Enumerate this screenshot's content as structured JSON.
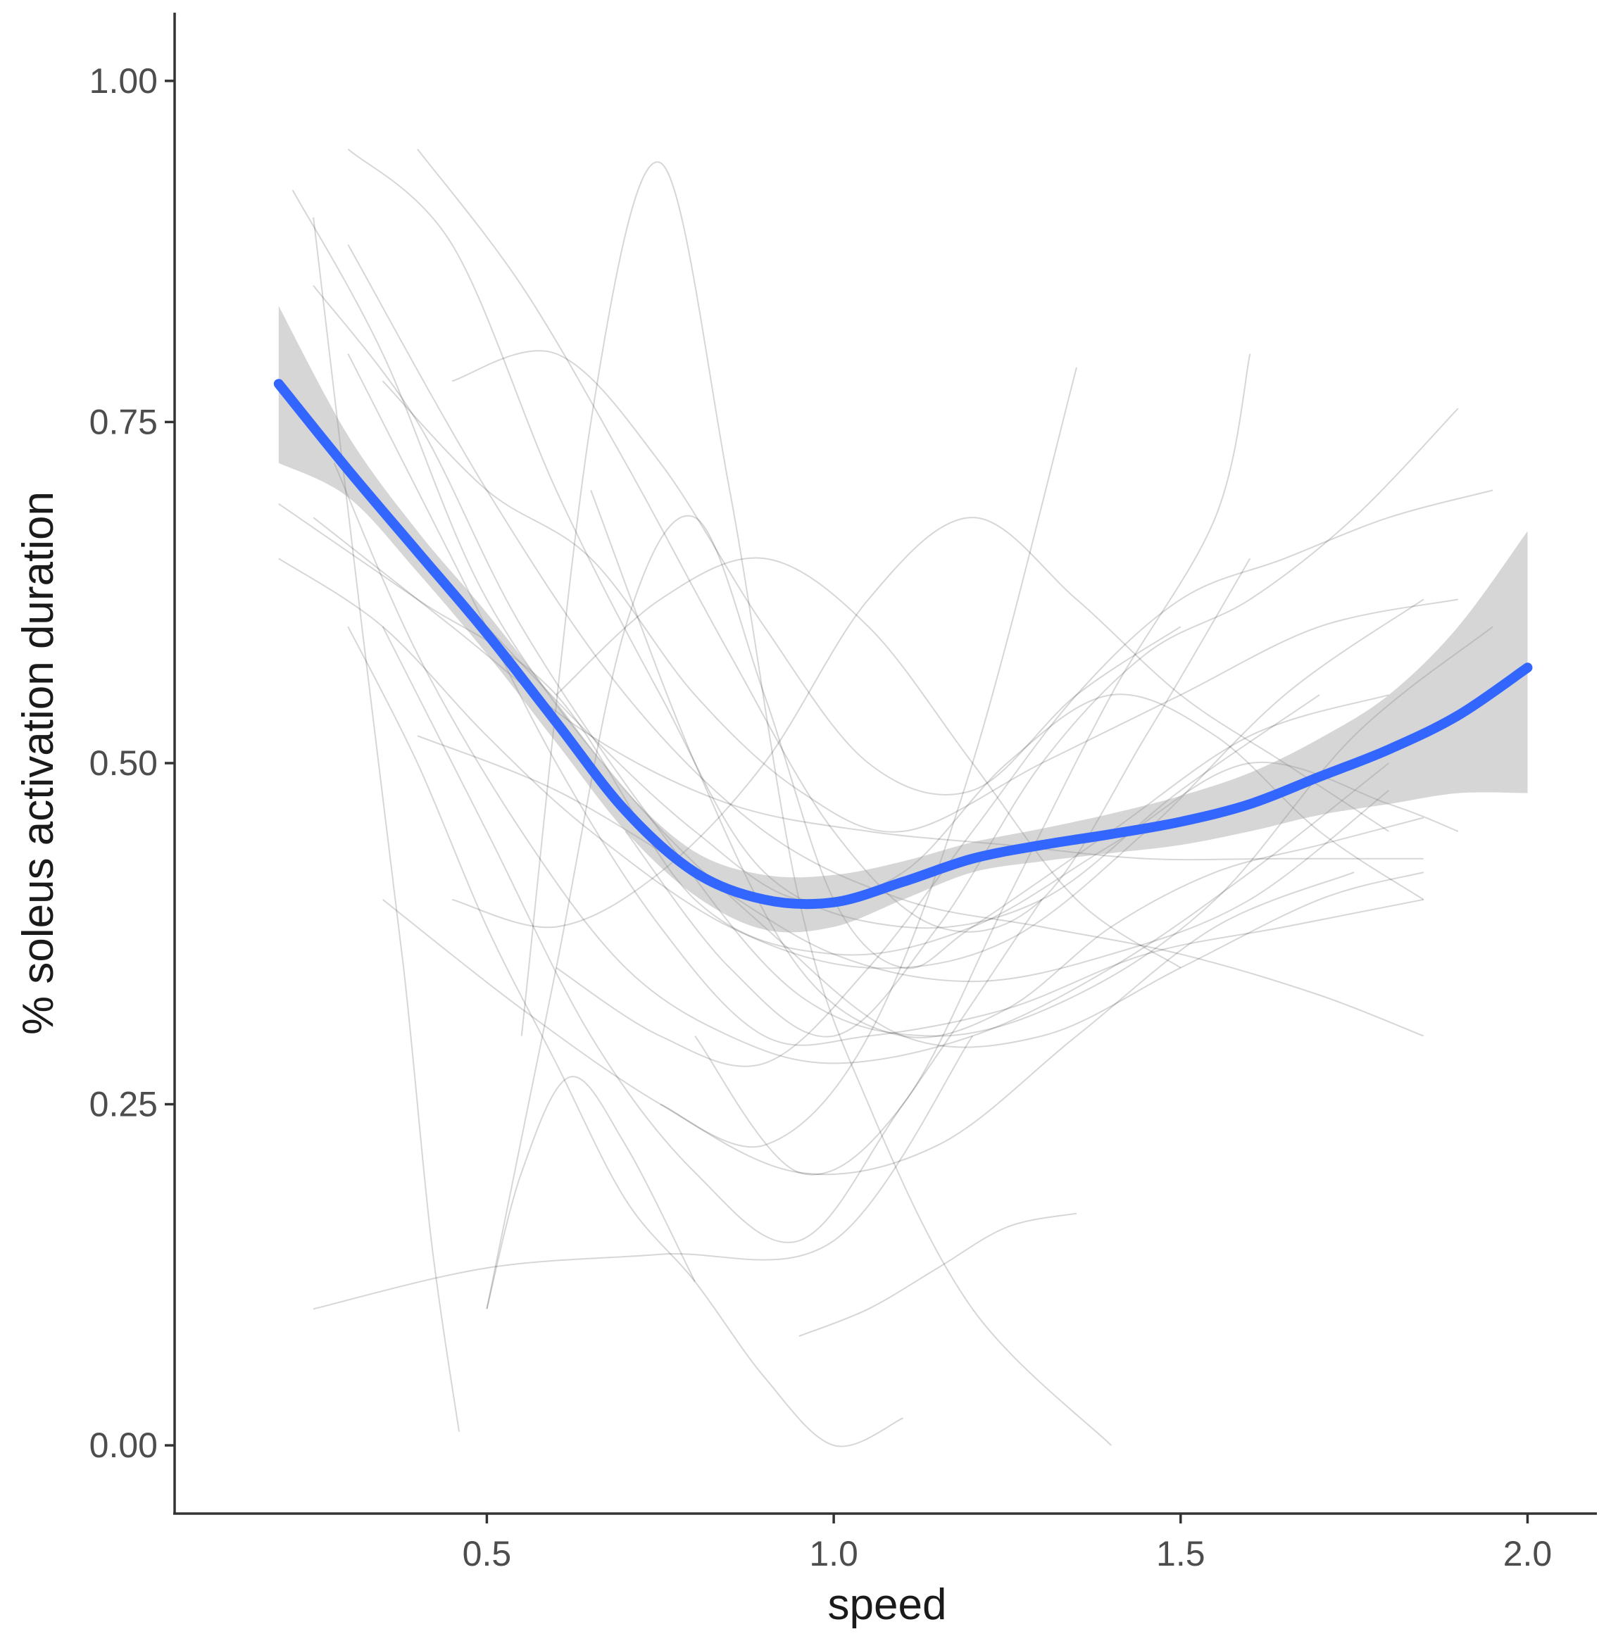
{
  "chart_data": {
    "type": "line",
    "xlabel": "speed",
    "ylabel": "% soleus activation duration",
    "xlim": [
      0.05,
      2.1
    ],
    "ylim": [
      -0.05,
      1.05
    ],
    "x_ticks": [
      0.5,
      1.0,
      1.5,
      2.0
    ],
    "x_tick_labels": [
      "0.5",
      "1.0",
      "1.5",
      "2.0"
    ],
    "y_ticks": [
      0.0,
      0.25,
      0.5,
      0.75,
      1.0
    ],
    "y_tick_labels": [
      "0.00",
      "0.25",
      "0.50",
      "0.75",
      "1.00"
    ],
    "grid": false,
    "legend": "none",
    "colors": {
      "smooth": "#3366ff",
      "ribbon": "#999999",
      "individual": "#000000"
    },
    "smooth": {
      "x": [
        0.2,
        0.3,
        0.4,
        0.5,
        0.6,
        0.7,
        0.8,
        0.9,
        1.0,
        1.1,
        1.2,
        1.3,
        1.4,
        1.5,
        1.6,
        1.7,
        1.8,
        1.9,
        2.0
      ],
      "y": [
        0.778,
        0.715,
        0.655,
        0.595,
        0.53,
        0.465,
        0.42,
        0.4,
        0.398,
        0.413,
        0.43,
        0.44,
        0.448,
        0.457,
        0.47,
        0.49,
        0.51,
        0.535,
        0.57
      ],
      "lower": [
        0.72,
        0.695,
        0.64,
        0.58,
        0.515,
        0.45,
        0.403,
        0.378,
        0.38,
        0.4,
        0.42,
        0.428,
        0.434,
        0.44,
        0.45,
        0.462,
        0.47,
        0.478,
        0.478
      ],
      "upper": [
        0.835,
        0.74,
        0.67,
        0.61,
        0.545,
        0.48,
        0.435,
        0.418,
        0.418,
        0.428,
        0.442,
        0.452,
        0.463,
        0.476,
        0.493,
        0.518,
        0.55,
        0.6,
        0.67
      ]
    },
    "individual_curves": [
      {
        "x": [
          0.2,
          0.4,
          0.6,
          0.8,
          1.0,
          1.2,
          1.4,
          1.6,
          1.8,
          1.9
        ],
        "y": [
          0.69,
          0.62,
          0.55,
          0.4,
          0.36,
          0.38,
          0.44,
          0.5,
          0.47,
          0.45
        ]
      },
      {
        "x": [
          0.22,
          0.35,
          0.5,
          0.7,
          0.9,
          1.1,
          1.3,
          1.5,
          1.7,
          1.85
        ],
        "y": [
          0.92,
          0.8,
          0.62,
          0.48,
          0.38,
          0.3,
          0.3,
          0.35,
          0.4,
          0.42
        ]
      },
      {
        "x": [
          0.25,
          0.4,
          0.55,
          0.75,
          0.95,
          1.15,
          1.35,
          1.55,
          1.75,
          1.95
        ],
        "y": [
          0.85,
          0.75,
          0.6,
          0.45,
          0.33,
          0.3,
          0.33,
          0.4,
          0.52,
          0.6
        ]
      },
      {
        "x": [
          0.2,
          0.35,
          0.5,
          0.65,
          0.85,
          1.05,
          1.25,
          1.45,
          1.65,
          1.85
        ],
        "y": [
          0.65,
          0.6,
          0.52,
          0.45,
          0.38,
          0.35,
          0.37,
          0.45,
          0.55,
          0.62
        ]
      },
      {
        "x": [
          0.3,
          0.45,
          0.6,
          0.75,
          0.9,
          1.1,
          1.3,
          1.5,
          1.7
        ],
        "y": [
          0.95,
          0.88,
          0.7,
          0.55,
          0.42,
          0.38,
          0.4,
          0.48,
          0.55
        ]
      },
      {
        "x": [
          0.55,
          0.65,
          0.75,
          0.85,
          0.95,
          1.05,
          1.2,
          1.4
        ],
        "y": [
          0.3,
          0.75,
          0.94,
          0.7,
          0.4,
          0.25,
          0.1,
          0.0
        ]
      },
      {
        "x": [
          0.25,
          0.5,
          0.75,
          1.0,
          1.2
        ],
        "y": [
          0.1,
          0.13,
          0.14,
          0.15,
          0.3
        ]
      },
      {
        "x": [
          0.25,
          0.32,
          0.38,
          0.42,
          0.46
        ],
        "y": [
          0.9,
          0.6,
          0.35,
          0.15,
          0.01
        ]
      },
      {
        "x": [
          0.28,
          0.4,
          0.55,
          0.7,
          0.85,
          1.0,
          1.2,
          1.4,
          1.6,
          1.8
        ],
        "y": [
          0.72,
          0.58,
          0.45,
          0.35,
          0.3,
          0.28,
          0.3,
          0.35,
          0.42,
          0.5
        ]
      },
      {
        "x": [
          0.3,
          0.45,
          0.6,
          0.75,
          0.9,
          1.05,
          1.25,
          1.45,
          1.65,
          1.85
        ],
        "y": [
          0.8,
          0.65,
          0.5,
          0.38,
          0.3,
          0.3,
          0.32,
          0.36,
          0.38,
          0.4
        ]
      },
      {
        "x": [
          0.35,
          0.5,
          0.65,
          0.8,
          0.95,
          1.1,
          1.3,
          1.5,
          1.7,
          1.9
        ],
        "y": [
          0.78,
          0.7,
          0.65,
          0.55,
          0.48,
          0.45,
          0.5,
          0.55,
          0.6,
          0.62
        ]
      },
      {
        "x": [
          0.5,
          0.6,
          0.7,
          0.8,
          0.9,
          1.0,
          1.1,
          1.2,
          1.4,
          1.6,
          1.8
        ],
        "y": [
          0.1,
          0.35,
          0.6,
          0.68,
          0.55,
          0.4,
          0.35,
          0.38,
          0.45,
          0.52,
          0.55
        ]
      },
      {
        "x": [
          0.5,
          0.55,
          0.62,
          0.7,
          0.8
        ],
        "y": [
          0.1,
          0.2,
          0.27,
          0.22,
          0.12
        ]
      },
      {
        "x": [
          0.3,
          0.4,
          0.5,
          0.6,
          0.7,
          0.8,
          0.9,
          1.0,
          1.1
        ],
        "y": [
          0.6,
          0.5,
          0.38,
          0.28,
          0.18,
          0.12,
          0.05,
          0.0,
          0.02
        ]
      },
      {
        "x": [
          0.35,
          0.5,
          0.65,
          0.8,
          0.95,
          1.1,
          1.3
        ],
        "y": [
          0.6,
          0.45,
          0.3,
          0.2,
          0.15,
          0.25,
          0.4
        ]
      },
      {
        "x": [
          0.4,
          0.55,
          0.7,
          0.85,
          1.0,
          1.15,
          1.3,
          1.45,
          1.6
        ],
        "y": [
          0.95,
          0.85,
          0.72,
          0.58,
          0.45,
          0.38,
          0.4,
          0.52,
          0.65
        ]
      },
      {
        "x": [
          0.45,
          0.6,
          0.75,
          0.9,
          1.05,
          1.2,
          1.35,
          1.5,
          1.65,
          1.8
        ],
        "y": [
          0.4,
          0.38,
          0.42,
          0.5,
          0.62,
          0.68,
          0.62,
          0.55,
          0.5,
          0.45
        ]
      },
      {
        "x": [
          0.6,
          0.75,
          0.9,
          1.05,
          1.2,
          1.35,
          1.5,
          1.65,
          1.8,
          1.95
        ],
        "y": [
          0.35,
          0.3,
          0.28,
          0.35,
          0.45,
          0.55,
          0.62,
          0.65,
          0.68,
          0.7
        ]
      },
      {
        "x": [
          0.7,
          0.85,
          1.0,
          1.15,
          1.3,
          1.45,
          1.6,
          1.75,
          1.9
        ],
        "y": [
          0.45,
          0.35,
          0.3,
          0.38,
          0.5,
          0.58,
          0.62,
          0.68,
          0.76
        ]
      },
      {
        "x": [
          0.75,
          0.9,
          1.05,
          1.2,
          1.35
        ],
        "y": [
          0.25,
          0.22,
          0.3,
          0.5,
          0.79
        ]
      },
      {
        "x": [
          0.8,
          0.95,
          1.1,
          1.25,
          1.4,
          1.55,
          1.6
        ],
        "y": [
          0.3,
          0.2,
          0.25,
          0.4,
          0.55,
          0.68,
          0.8
        ]
      },
      {
        "x": [
          0.3,
          0.5,
          0.7,
          0.9,
          1.1,
          1.3,
          1.5,
          1.7,
          1.85
        ],
        "y": [
          0.88,
          0.7,
          0.55,
          0.45,
          0.4,
          0.38,
          0.36,
          0.33,
          0.3
        ]
      },
      {
        "x": [
          0.25,
          0.45,
          0.65,
          0.85,
          1.05,
          1.25,
          1.45,
          1.65,
          1.85
        ],
        "y": [
          0.68,
          0.6,
          0.52,
          0.47,
          0.45,
          0.44,
          0.43,
          0.43,
          0.43
        ]
      },
      {
        "x": [
          0.4,
          0.6,
          0.8,
          1.0,
          1.2,
          1.4,
          1.6,
          1.8
        ],
        "y": [
          0.52,
          0.48,
          0.42,
          0.36,
          0.34,
          0.36,
          0.4,
          0.48
        ]
      },
      {
        "x": [
          0.5,
          0.65,
          0.8,
          0.95,
          1.1,
          1.25,
          1.4,
          1.55,
          1.7,
          1.85
        ],
        "y": [
          0.6,
          0.52,
          0.45,
          0.4,
          0.42,
          0.5,
          0.55,
          0.52,
          0.45,
          0.4
        ]
      },
      {
        "x": [
          0.95,
          1.05,
          1.15,
          1.25,
          1.35
        ],
        "y": [
          0.08,
          0.1,
          0.13,
          0.16,
          0.17
        ]
      },
      {
        "x": [
          0.6,
          0.75,
          0.9,
          1.05,
          1.2,
          1.35,
          1.5
        ],
        "y": [
          0.55,
          0.62,
          0.65,
          0.6,
          0.5,
          0.4,
          0.35
        ]
      },
      {
        "x": [
          0.35,
          0.55,
          0.75,
          0.95,
          1.15,
          1.35,
          1.55,
          1.75
        ],
        "y": [
          0.4,
          0.32,
          0.25,
          0.2,
          0.22,
          0.3,
          0.38,
          0.42
        ]
      },
      {
        "x": [
          0.65,
          0.8,
          0.95,
          1.1,
          1.25,
          1.4,
          1.55,
          1.7,
          1.85
        ],
        "y": [
          0.7,
          0.5,
          0.35,
          0.3,
          0.32,
          0.38,
          0.42,
          0.44,
          0.46
        ]
      },
      {
        "x": [
          0.45,
          0.6,
          0.75,
          0.9,
          1.05,
          1.2,
          1.35,
          1.5
        ],
        "y": [
          0.78,
          0.8,
          0.72,
          0.6,
          0.5,
          0.48,
          0.55,
          0.6
        ]
      }
    ]
  }
}
